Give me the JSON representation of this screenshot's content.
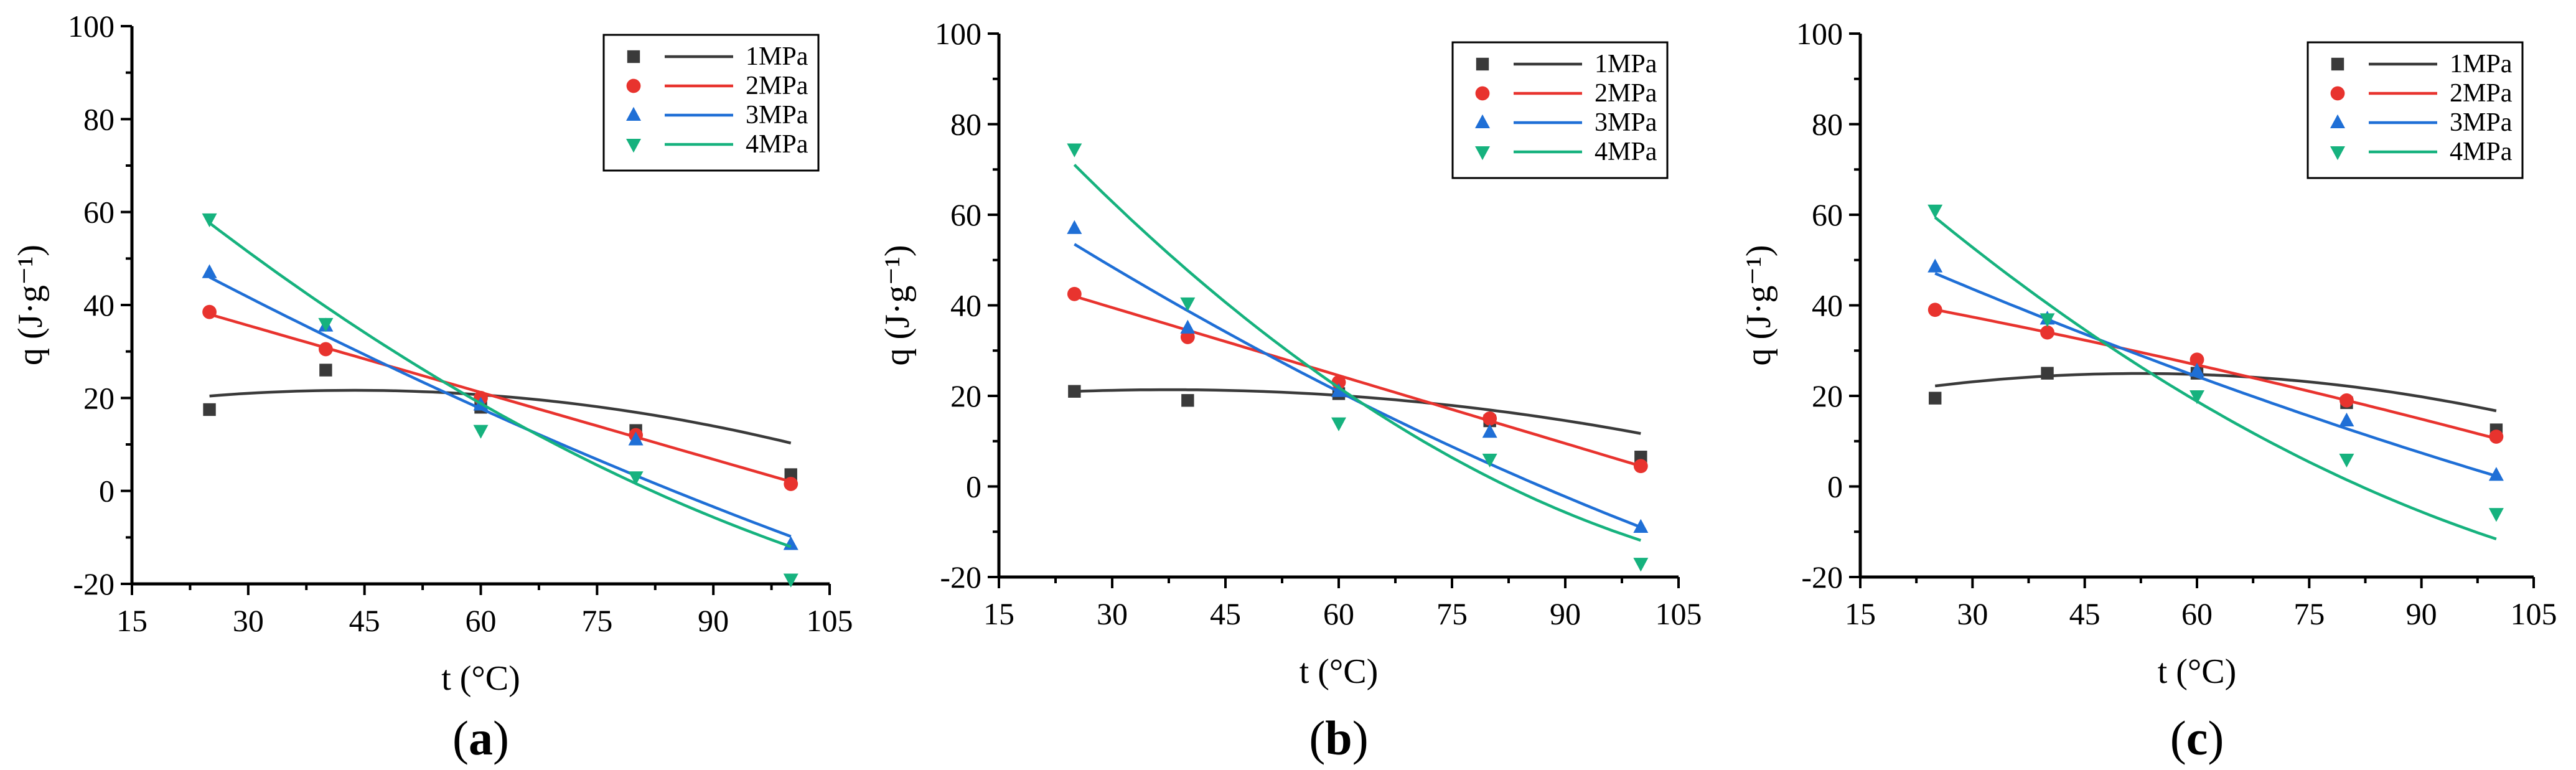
{
  "colors": {
    "1MPa": "#3a3a3a",
    "2MPa": "#e8332e",
    "3MPa": "#1f6fd6",
    "4MPa": "#16b27e"
  },
  "chart_data": [
    {
      "type": "scatter",
      "panel_label": "a",
      "xlabel": "t (°C)",
      "ylabel": "q (J·g⁻¹)",
      "xlim": [
        15,
        105
      ],
      "ylim": [
        -20,
        100
      ],
      "xticks": [
        15,
        30,
        45,
        60,
        75,
        90,
        105
      ],
      "yticks": [
        -20,
        0,
        20,
        40,
        60,
        80,
        100
      ],
      "legend_position": "top-right",
      "series": [
        {
          "name": "1MPa",
          "marker": "square",
          "x": [
            25,
            40,
            60,
            80,
            100
          ],
          "y": [
            17.5,
            26,
            18,
            13,
            3.5
          ],
          "fit": [
            -0.00356,
            0.31,
            14.9
          ]
        },
        {
          "name": "2MPa",
          "marker": "circle",
          "x": [
            25,
            40,
            60,
            80,
            100
          ],
          "y": [
            38.5,
            30.5,
            20,
            12,
            1.5
          ],
          "fit": [
            0.0,
            -0.48,
            50
          ]
        },
        {
          "name": "3MPa",
          "marker": "triangle-up",
          "x": [
            25,
            40,
            60,
            80,
            100
          ],
          "y": [
            47,
            35.5,
            18.5,
            11,
            -11.5
          ],
          "fit": [
            0.00161,
            -0.945,
            68.6
          ]
        },
        {
          "name": "4MPa",
          "marker": "triangle-down",
          "x": [
            25,
            40,
            60,
            80,
            100
          ],
          "y": [
            58.5,
            36,
            13,
            3,
            -19
          ],
          "fit": [
            0.00453,
            -1.495,
            92.2
          ]
        }
      ]
    },
    {
      "type": "scatter",
      "panel_label": "b",
      "xlabel": "t (°C)",
      "ylabel": "q (J·g⁻¹)",
      "xlim": [
        15,
        105
      ],
      "ylim": [
        -20,
        100
      ],
      "xticks": [
        15,
        30,
        45,
        60,
        75,
        90,
        105
      ],
      "yticks": [
        -20,
        0,
        20,
        40,
        60,
        80,
        100
      ],
      "legend_position": "top-right",
      "series": [
        {
          "name": "1MPa",
          "marker": "square",
          "x": [
            25,
            40,
            60,
            80,
            100
          ],
          "y": [
            21,
            19,
            20.5,
            14.5,
            6.5
          ],
          "fit": [
            -0.00247,
            0.185,
            17.9
          ]
        },
        {
          "name": "2MPa",
          "marker": "circle",
          "x": [
            25,
            40,
            60,
            80,
            100
          ],
          "y": [
            42.5,
            33,
            23,
            15,
            4.5
          ],
          "fit": [
            0.0,
            -0.5,
            54.5
          ]
        },
        {
          "name": "3MPa",
          "marker": "triangle-up",
          "x": [
            25,
            40,
            60,
            80,
            100
          ],
          "y": [
            57,
            35,
            21,
            12,
            -9
          ],
          "fit": [
            0.00243,
            -1.137,
            80.4
          ]
        },
        {
          "name": "4MPa",
          "marker": "triangle-down",
          "x": [
            25,
            40,
            60,
            80,
            100
          ],
          "y": [
            74.5,
            40.5,
            14,
            6,
            -17
          ],
          "fit": [
            0.00749,
            -2.042,
            117.4
          ]
        }
      ]
    },
    {
      "type": "scatter",
      "panel_label": "c",
      "xlabel": "t (°C)",
      "ylabel": "q (J·g⁻¹)",
      "xlim": [
        15,
        105
      ],
      "ylim": [
        -20,
        100
      ],
      "xticks": [
        15,
        30,
        45,
        60,
        75,
        90,
        105
      ],
      "yticks": [
        -20,
        0,
        20,
        40,
        60,
        80,
        100
      ],
      "legend_position": "top-right",
      "series": [
        {
          "name": "1MPa",
          "marker": "square",
          "x": [
            25,
            40,
            60,
            80,
            100
          ],
          "y": [
            19.5,
            25,
            25,
            18.5,
            12.5
          ],
          "fit": [
            -0.00365,
            0.383,
            14.9
          ]
        },
        {
          "name": "2MPa",
          "marker": "circle",
          "x": [
            25,
            40,
            60,
            80,
            100
          ],
          "y": [
            39,
            34,
            28,
            19,
            11
          ],
          "fit": [
            -0.000773,
            -0.283,
            46.6
          ]
        },
        {
          "name": "3MPa",
          "marker": "triangle-up",
          "x": [
            25,
            40,
            60,
            80,
            100
          ],
          "y": [
            48.5,
            37,
            25.5,
            14.5,
            2.5
          ],
          "fit": [
            0.00133,
            -0.763,
            65.3
          ]
        },
        {
          "name": "4MPa",
          "marker": "triangle-down",
          "x": [
            25,
            40,
            60,
            80,
            100
          ],
          "y": [
            61,
            37,
            20,
            6,
            -6
          ],
          "fit": [
            0.00533,
            -1.613,
            96.4
          ]
        }
      ]
    }
  ]
}
